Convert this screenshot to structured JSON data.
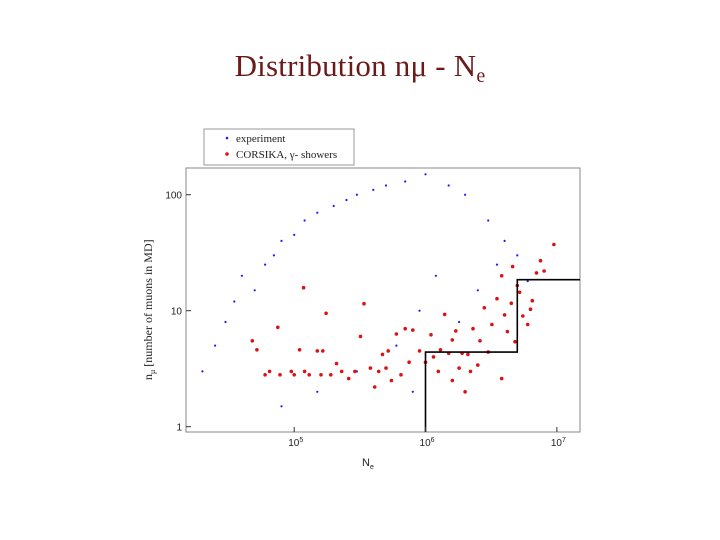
{
  "slide": {
    "title_main": "Distribution   n",
    "title_mu": "μ",
    "title_sep": " - N",
    "title_sub": "e"
  },
  "chart_data": {
    "type": "scatter",
    "title": "",
    "xlabel": "N",
    "xlabel_sub": "e",
    "ylabel": "n",
    "ylabel_sub": "μ",
    "ylabel_suffix": " [number of muons in MD]",
    "x_scale": "log",
    "y_scale": "log",
    "xlim": [
      15000,
      15000000
    ],
    "ylim": [
      0.9,
      170
    ],
    "grid": false,
    "legend_placement": "top-left",
    "x_ticks": [
      {
        "value": 100000,
        "base": "10",
        "exp": "5"
      },
      {
        "value": 1000000,
        "base": "10",
        "exp": "6"
      },
      {
        "value": 10000000,
        "base": "10",
        "exp": "7"
      }
    ],
    "y_ticks": [
      {
        "value": 1,
        "label": "1"
      },
      {
        "value": 10,
        "label": "10"
      },
      {
        "value": 100,
        "label": "100"
      }
    ],
    "series": [
      {
        "name": "experiment",
        "color": "#1a1aff",
        "marker": "small-dot",
        "points": [
          [
            20000,
            3
          ],
          [
            25000,
            5
          ],
          [
            30000,
            8
          ],
          [
            35000,
            12
          ],
          [
            40000,
            20
          ],
          [
            50000,
            15
          ],
          [
            60000,
            25
          ],
          [
            70000,
            30
          ],
          [
            80000,
            40
          ],
          [
            100000,
            45
          ],
          [
            120000,
            60
          ],
          [
            150000,
            70
          ],
          [
            200000,
            80
          ],
          [
            250000,
            90
          ],
          [
            300000,
            100
          ],
          [
            400000,
            110
          ],
          [
            500000,
            120
          ],
          [
            700000,
            130
          ],
          [
            1000000,
            150
          ],
          [
            1500000,
            120
          ],
          [
            2000000,
            100
          ],
          [
            3000000,
            60
          ],
          [
            4000000,
            40
          ],
          [
            5000000,
            30
          ],
          [
            1200000,
            20
          ],
          [
            900000,
            10
          ],
          [
            600000,
            5
          ],
          [
            300000,
            3
          ],
          [
            150000,
            2
          ],
          [
            80000,
            1.5
          ],
          [
            2500000,
            15
          ],
          [
            1800000,
            8
          ],
          [
            800000,
            2
          ],
          [
            3500000,
            25
          ],
          [
            6000000,
            18
          ]
        ]
      },
      {
        "name": "CORSIKA, γ- showers",
        "color": "#dd1111",
        "marker": "dot",
        "points": [
          [
            48000,
            5.5
          ],
          [
            52000,
            4.6
          ],
          [
            60000,
            2.8
          ],
          [
            65000,
            3.0
          ],
          [
            75000,
            7.2
          ],
          [
            78000,
            2.8
          ],
          [
            95000,
            3.0
          ],
          [
            100000,
            2.8
          ],
          [
            110000,
            4.6
          ],
          [
            118000,
            15.8
          ],
          [
            120000,
            3.0
          ],
          [
            130000,
            2.8
          ],
          [
            150000,
            4.5
          ],
          [
            160000,
            2.8
          ],
          [
            165000,
            4.5
          ],
          [
            175000,
            9.5
          ],
          [
            190000,
            2.8
          ],
          [
            210000,
            3.5
          ],
          [
            230000,
            3.0
          ],
          [
            260000,
            2.6
          ],
          [
            290000,
            3.0
          ],
          [
            320000,
            6.0
          ],
          [
            340000,
            11.5
          ],
          [
            380000,
            3.2
          ],
          [
            410000,
            2.2
          ],
          [
            440000,
            3.0
          ],
          [
            470000,
            4.2
          ],
          [
            500000,
            3.2
          ],
          [
            520000,
            4.5
          ],
          [
            550000,
            2.5
          ],
          [
            600000,
            6.3
          ],
          [
            650000,
            2.8
          ],
          [
            700000,
            7.0
          ],
          [
            750000,
            3.6
          ],
          [
            800000,
            6.8
          ],
          [
            900000,
            4.5
          ],
          [
            1000000,
            3.6
          ],
          [
            1100000,
            6.2
          ],
          [
            1150000,
            4.0
          ],
          [
            1250000,
            3.0
          ],
          [
            1300000,
            4.6
          ],
          [
            1400000,
            9.3
          ],
          [
            1500000,
            4.3
          ],
          [
            1600000,
            2.5
          ],
          [
            1700000,
            6.7
          ],
          [
            1800000,
            3.2
          ],
          [
            1900000,
            4.3
          ],
          [
            2000000,
            2.0
          ],
          [
            2100000,
            4.2
          ],
          [
            2300000,
            7.0
          ],
          [
            2500000,
            3.4
          ],
          [
            2600000,
            5.5
          ],
          [
            2800000,
            10.6
          ],
          [
            3000000,
            4.4
          ],
          [
            3200000,
            7.6
          ],
          [
            3500000,
            12.7
          ],
          [
            3800000,
            2.6
          ],
          [
            4000000,
            9.2
          ],
          [
            4200000,
            6.6
          ],
          [
            4500000,
            11.6
          ],
          [
            4800000,
            5.4
          ],
          [
            5000000,
            16.5
          ],
          [
            5200000,
            14.4
          ],
          [
            5500000,
            9.0
          ],
          [
            6000000,
            7.6
          ],
          [
            6300000,
            10.3
          ],
          [
            6500000,
            12.2
          ],
          [
            7000000,
            21.2
          ],
          [
            7500000,
            27.0
          ],
          [
            8000000,
            22.0
          ],
          [
            9500000,
            37.2
          ],
          [
            3800000,
            20.0
          ],
          [
            4600000,
            24.0
          ],
          [
            2200000,
            3.0
          ],
          [
            1600000,
            5.6
          ]
        ]
      }
    ],
    "cut_boundary": [
      [
        1000000,
        0.9
      ],
      [
        1000000,
        4.4
      ],
      [
        5000000,
        4.4
      ],
      [
        5000000,
        18.5
      ],
      [
        15000000,
        18.5
      ]
    ]
  }
}
